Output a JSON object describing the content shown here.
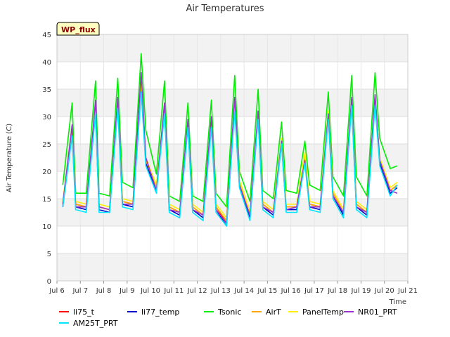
{
  "chart_data": {
    "type": "line",
    "title": "Air Temperatures",
    "xlabel": "Time",
    "ylabel": "Air Temperature (C)",
    "badge": "WP_flux",
    "ylim": [
      0,
      45
    ],
    "yticks": [
      0,
      5,
      10,
      15,
      20,
      25,
      30,
      35,
      40,
      45
    ],
    "xlim": [
      6,
      21
    ],
    "xticks": [
      {
        "value": 6,
        "label": "Jul 6"
      },
      {
        "value": 7,
        "label": "Jul 7"
      },
      {
        "value": 8,
        "label": "Jul 8"
      },
      {
        "value": 9,
        "label": "Jul 9"
      },
      {
        "value": 10,
        "label": "Jul 10"
      },
      {
        "value": 11,
        "label": "Jul 11"
      },
      {
        "value": 12,
        "label": "Jul 12"
      },
      {
        "value": 13,
        "label": "Jul 13"
      },
      {
        "value": 14,
        "label": "Jul 14"
      },
      {
        "value": 15,
        "label": "Jul 15"
      },
      {
        "value": 16,
        "label": "Jul 16"
      },
      {
        "value": 17,
        "label": "Jul 17"
      },
      {
        "value": 18,
        "label": "Jul 18"
      },
      {
        "value": 19,
        "label": "Jul 19"
      },
      {
        "value": 20,
        "label": "Jul 20"
      },
      {
        "value": 21,
        "label": "Jul 21"
      }
    ],
    "grid": true,
    "legend_position": "bottom",
    "plot_background_bands": [
      "#ffffff",
      "#f2f2f2"
    ],
    "x": [
      6.25,
      6.65,
      6.8,
      7.25,
      7.65,
      7.8,
      8.25,
      8.6,
      8.8,
      9.25,
      9.6,
      9.8,
      10.25,
      10.6,
      10.8,
      11.25,
      11.6,
      11.8,
      12.25,
      12.6,
      12.8,
      13.25,
      13.6,
      13.8,
      14.25,
      14.6,
      14.8,
      15.25,
      15.6,
      15.8,
      16.25,
      16.6,
      16.8,
      17.25,
      17.6,
      17.8,
      18.25,
      18.6,
      18.8,
      19.25,
      19.6,
      19.8,
      20.25,
      20.55
    ],
    "series": [
      {
        "name": "li75_t",
        "color": "#ff0000",
        "values": [
          14.0,
          27.5,
          14.0,
          13.5,
          31.5,
          13.5,
          13.0,
          33.0,
          14.5,
          14.0,
          36.5,
          22.0,
          17.0,
          32.0,
          13.5,
          12.5,
          29.0,
          13.5,
          12.0,
          29.5,
          13.5,
          10.5,
          32.5,
          18.0,
          12.0,
          30.5,
          14.0,
          12.5,
          25.5,
          13.5,
          13.5,
          22.5,
          14.0,
          13.5,
          30.5,
          16.0,
          12.5,
          33.0,
          14.0,
          12.5,
          33.5,
          22.0,
          16.5,
          17.5
        ]
      },
      {
        "name": "li77_temp",
        "color": "#0000cc",
        "values": [
          13.5,
          28.0,
          13.5,
          13.0,
          31.0,
          13.0,
          12.5,
          32.5,
          14.0,
          13.5,
          35.0,
          21.5,
          16.5,
          31.5,
          13.0,
          12.0,
          28.5,
          13.0,
          11.5,
          29.0,
          13.0,
          10.0,
          32.0,
          17.5,
          11.5,
          30.0,
          13.5,
          12.0,
          25.5,
          13.0,
          13.0,
          22.0,
          13.5,
          13.0,
          30.0,
          15.5,
          12.0,
          32.5,
          13.5,
          12.0,
          33.0,
          21.5,
          16.0,
          17.0
        ]
      },
      {
        "name": "Tsonic",
        "color": "#00ee00",
        "values": [
          17.5,
          32.5,
          16.0,
          16.0,
          36.5,
          16.0,
          15.5,
          37.0,
          18.0,
          17.0,
          41.5,
          27.5,
          19.5,
          36.5,
          15.5,
          14.5,
          32.5,
          15.5,
          14.5,
          33.0,
          16.0,
          13.5,
          37.5,
          20.0,
          14.5,
          35.0,
          16.5,
          15.0,
          29.0,
          16.5,
          16.0,
          25.5,
          17.5,
          16.5,
          34.5,
          19.0,
          15.5,
          37.5,
          19.0,
          15.5,
          38.0,
          26.0,
          20.5,
          21.0
        ]
      },
      {
        "name": "AirT",
        "color": "#ffa500",
        "values": [
          14.0,
          27.0,
          14.0,
          13.5,
          31.0,
          13.5,
          13.0,
          32.5,
          14.5,
          14.0,
          35.5,
          22.0,
          17.0,
          31.5,
          13.5,
          12.5,
          28.5,
          13.5,
          12.0,
          28.5,
          13.5,
          11.0,
          31.5,
          18.0,
          12.0,
          30.0,
          14.0,
          12.5,
          25.0,
          13.5,
          13.5,
          23.0,
          14.0,
          13.5,
          30.5,
          16.0,
          12.5,
          32.5,
          14.0,
          12.5,
          33.0,
          22.0,
          16.5,
          17.5
        ]
      },
      {
        "name": "PanelTemp",
        "color": "#ffee00",
        "values": [
          14.5,
          28.5,
          14.5,
          14.0,
          31.5,
          14.0,
          13.5,
          33.0,
          15.0,
          14.5,
          36.0,
          22.5,
          17.5,
          32.0,
          14.0,
          13.0,
          29.0,
          14.0,
          12.5,
          29.5,
          14.0,
          11.5,
          32.0,
          18.5,
          12.5,
          30.5,
          14.5,
          13.0,
          26.0,
          14.0,
          14.0,
          23.5,
          14.5,
          14.0,
          31.0,
          16.5,
          13.0,
          33.0,
          14.5,
          13.0,
          33.5,
          22.5,
          17.0,
          18.0
        ]
      },
      {
        "name": "NR01_PRT",
        "color": "#9932cc",
        "values": [
          14.0,
          28.5,
          13.5,
          13.5,
          33.0,
          13.5,
          13.0,
          33.5,
          14.0,
          14.0,
          38.0,
          22.5,
          16.5,
          32.5,
          13.0,
          12.5,
          29.5,
          13.0,
          12.0,
          30.0,
          13.0,
          10.5,
          33.5,
          17.5,
          12.0,
          31.0,
          13.5,
          12.5,
          25.5,
          13.0,
          13.5,
          22.0,
          13.5,
          13.5,
          30.5,
          15.5,
          12.5,
          33.5,
          13.5,
          12.5,
          34.0,
          22.0,
          16.5,
          16.0
        ]
      },
      {
        "name": "AM25T_PRT",
        "color": "#00e5ff",
        "values": [
          13.5,
          26.5,
          13.0,
          12.5,
          30.5,
          12.5,
          12.5,
          31.5,
          13.5,
          13.0,
          34.5,
          21.0,
          16.0,
          30.5,
          12.5,
          11.5,
          28.0,
          12.5,
          11.0,
          28.0,
          12.5,
          10.0,
          31.0,
          17.0,
          11.0,
          29.5,
          13.0,
          11.5,
          25.0,
          12.5,
          12.5,
          21.5,
          13.0,
          12.5,
          29.5,
          15.0,
          11.5,
          32.0,
          13.0,
          11.5,
          32.0,
          21.0,
          15.5,
          17.5
        ]
      }
    ]
  }
}
